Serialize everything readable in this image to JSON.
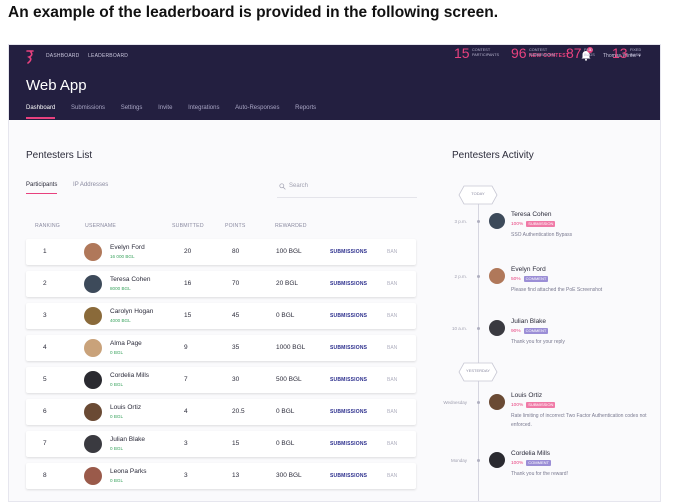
{
  "caption": "An example of the leaderboard is provided in the following screen.",
  "header": {
    "nav": [
      "DASHBOARD",
      "LEADERBOARD"
    ],
    "new_contest": "NEW CONTEST",
    "notifications_count": "3",
    "user": "Thomas Winter ▾",
    "app_title": "Web App",
    "tabs": [
      "Dashboard",
      "Submissions",
      "Settings",
      "Invite",
      "Integrations",
      "Auto-Responses",
      "Reports"
    ],
    "active_tab": "Dashboard",
    "stats": [
      {
        "value": "15",
        "label_line1": "CONTEST",
        "label_line2": "PARTICIPANTS"
      },
      {
        "value": "96",
        "label_line1": "CONTEST",
        "label_line2": "SUBMISSIONS"
      },
      {
        "value": "87",
        "label_line1": "PAID",
        "label_line2": "BUGS"
      },
      {
        "value": "13",
        "label_line1": "FIXED",
        "label_line2": "BUGS"
      }
    ]
  },
  "list": {
    "title": "Pentesters List",
    "subtabs": [
      "Participants",
      "IP Addresses"
    ],
    "search_placeholder": "Search",
    "columns": [
      "RANKING",
      "USERNAME",
      "SUBMITTED",
      "POINTS",
      "REWARDED"
    ],
    "submissions_label": "SUBMISSIONS",
    "ban_label": "BAN",
    "rows": [
      {
        "rank": "1",
        "name": "Evelyn Ford",
        "reward_small": "16 000 BGL",
        "submitted": "20",
        "points": "80",
        "rewarded": "100 BGL",
        "avatar_color": "#b0785a"
      },
      {
        "rank": "2",
        "name": "Teresa Cohen",
        "reward_small": "8000 BGL",
        "submitted": "16",
        "points": "70",
        "rewarded": "20 BGL",
        "avatar_color": "#3d4a5a"
      },
      {
        "rank": "3",
        "name": "Carolyn Hogan",
        "reward_small": "4000 BGL",
        "submitted": "15",
        "points": "45",
        "rewarded": "0 BGL",
        "avatar_color": "#8a6a3a"
      },
      {
        "rank": "4",
        "name": "Alma Page",
        "reward_small": "0 BGL",
        "submitted": "9",
        "points": "35",
        "rewarded": "1000 BGL",
        "avatar_color": "#c9a27a"
      },
      {
        "rank": "5",
        "name": "Cordelia Mills",
        "reward_small": "0 BGL",
        "submitted": "7",
        "points": "30",
        "rewarded": "500 BGL",
        "avatar_color": "#2a2a30"
      },
      {
        "rank": "6",
        "name": "Louis Ortiz",
        "reward_small": "0 BGL",
        "submitted": "4",
        "points": "20.5",
        "rewarded": "0 BGL",
        "avatar_color": "#6a4a34"
      },
      {
        "rank": "7",
        "name": "Julian Blake",
        "reward_small": "0 BGL",
        "submitted": "3",
        "points": "15",
        "rewarded": "0 BGL",
        "avatar_color": "#3a3a40"
      },
      {
        "rank": "8",
        "name": "Leona Parks",
        "reward_small": "0 BGL",
        "submitted": "3",
        "points": "13",
        "rewarded": "300 BGL",
        "avatar_color": "#9a5a4a"
      }
    ]
  },
  "activity": {
    "title": "Pentesters Activity",
    "markers": [
      "TODAY",
      "YESTERDAY"
    ],
    "items": [
      {
        "time": "3 p.m.",
        "name": "Teresa Cohen",
        "pct": "100%",
        "badge": "SUBMISSION",
        "badge_type": "submission",
        "text": "SSO Authentication Bypass",
        "avatar_color": "#3d4a5a"
      },
      {
        "time": "2 p.m.",
        "name": "Evelyn Ford",
        "pct": "50%",
        "badge": "COMMENT",
        "badge_type": "comment",
        "text": "Please find attached the PoE Screenshot",
        "avatar_color": "#b0785a"
      },
      {
        "time": "10 a.m.",
        "name": "Julian Blake",
        "pct": "90%",
        "badge": "COMMENT",
        "badge_type": "comment",
        "text": "Thank you for your reply",
        "avatar_color": "#3a3a40"
      },
      {
        "time": "Wednesday",
        "name": "Louis Ortiz",
        "pct": "100%",
        "badge": "SUBMISSION",
        "badge_type": "submission",
        "text": "Rate limiting of incorrect Two Factor Authentication codes not enforced.",
        "avatar_color": "#6a4a34"
      },
      {
        "time": "Monday",
        "name": "Cordelia Mills",
        "pct": "100%",
        "badge": "COMMENT",
        "badge_type": "comment",
        "text": "Thank you for the reward!",
        "avatar_color": "#2a2a30"
      }
    ]
  },
  "colors": {
    "accent": "#e8417e",
    "header_bg": "#231f40",
    "link": "#2a2d8c",
    "reward_green": "#3aa35e"
  }
}
